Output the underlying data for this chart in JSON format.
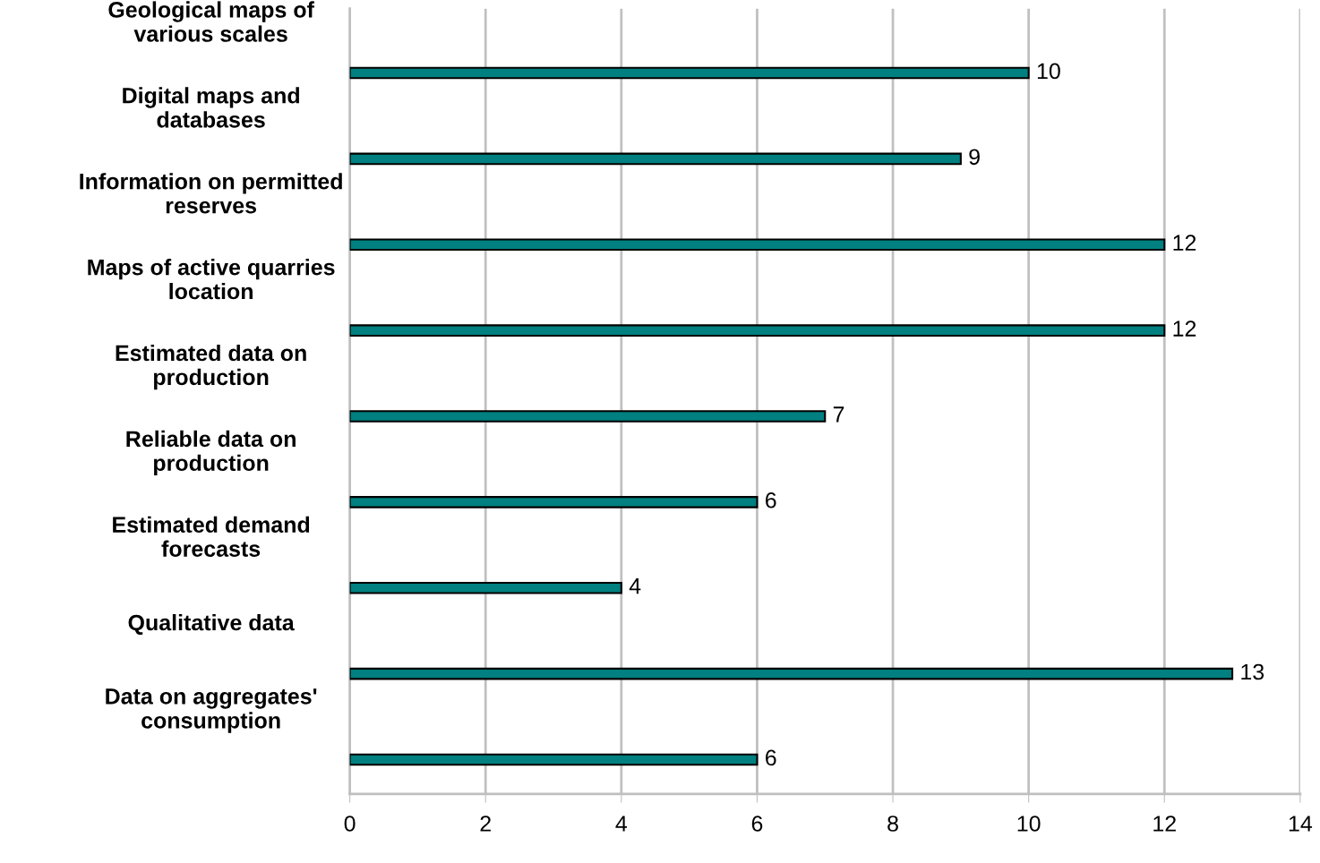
{
  "chart_data": {
    "type": "bar",
    "orientation": "horizontal",
    "categories": [
      "Geological maps of\nvarious scales",
      "Digital maps and\ndatabases",
      "Information on permitted\nreserves",
      "Maps of active quarries\nlocation",
      "Estimated data on\nproduction",
      "Reliable data on\nproduction",
      "Estimated demand\nforecasts",
      "Qualitative data",
      "Data on aggregates'\nconsumption"
    ],
    "values": [
      10,
      9,
      12,
      12,
      7,
      6,
      4,
      13,
      6
    ],
    "color": "#008080",
    "xlim": [
      0,
      14
    ],
    "xticks": [
      0,
      2,
      4,
      6,
      8,
      10,
      12,
      14
    ],
    "grid": "x",
    "data_labels": true
  }
}
